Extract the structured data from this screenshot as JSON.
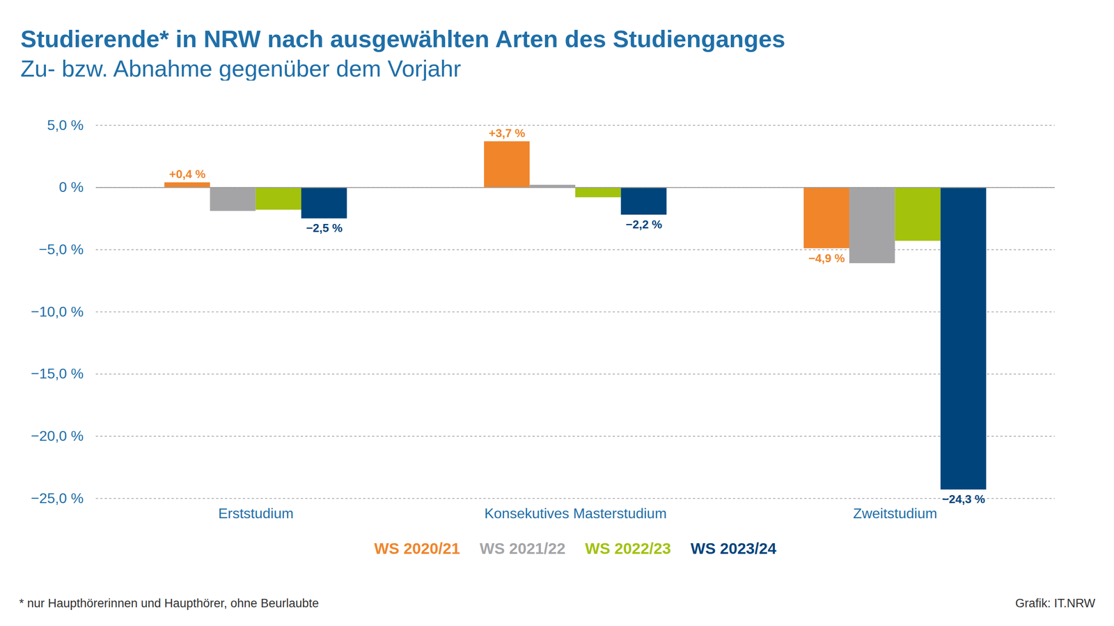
{
  "chart_data": {
    "type": "bar",
    "title": "Studierende* in NRW nach ausgewählten Arten des Studienganges",
    "subtitle": "Zu- bzw. Abnahme gegenüber dem Vorjahr",
    "categories": [
      "Erststudium",
      "Konsekutives Masterstudium",
      "Zweitstudium"
    ],
    "series": [
      {
        "name": "WS 2020/21",
        "color": "#f0852a",
        "values": [
          0.4,
          3.7,
          -4.9
        ],
        "value_labels": [
          "+0,4 %",
          "+3,7 %",
          "−4,9 %"
        ]
      },
      {
        "name": "WS 2021/22",
        "color": "#a4a4a7",
        "values": [
          -1.9,
          0.2,
          -6.1
        ]
      },
      {
        "name": "WS 2022/23",
        "color": "#a2c20b",
        "values": [
          -1.8,
          -0.8,
          -4.3
        ]
      },
      {
        "name": "WS 2023/24",
        "color": "#00447c",
        "values": [
          -2.5,
          -2.2,
          -24.3
        ],
        "value_labels": [
          "−2,5 %",
          "−2,2 %",
          "−24,3 %"
        ]
      }
    ],
    "ylim": [
      -25,
      5
    ],
    "yticks": [
      {
        "value": -25,
        "label": "−25,0 %"
      },
      {
        "value": -20,
        "label": "−20,0 %"
      },
      {
        "value": -15,
        "label": "−15,0 %"
      },
      {
        "value": -10,
        "label": "−10,0 %"
      },
      {
        "value": -5,
        "label": "−5,0 %"
      },
      {
        "value": 0,
        "label": "0 %"
      },
      {
        "value": 5,
        "label": "5,0 %"
      }
    ],
    "grid": true,
    "data_labels": true,
    "legend": "bottom",
    "footnote": "* nur Haupthörerinnen und Haupthörer, ohne Beurlaubte",
    "credit": "Grafik: IT.NRW"
  }
}
